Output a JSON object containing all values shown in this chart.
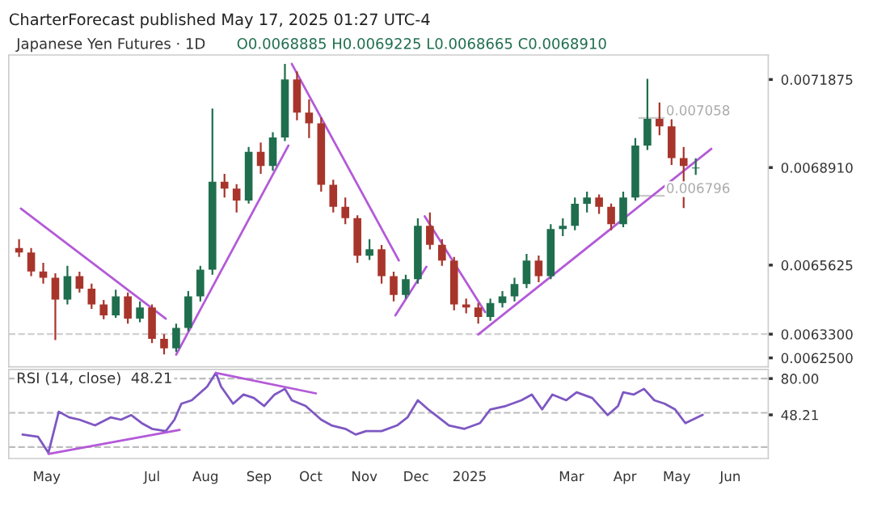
{
  "chart_data": [
    {
      "type": "candlestick",
      "title": "Japanese Yen Futures · 1D",
      "subtitle": "O0.0068885 H0.0069225 L0.0068665 C0.0068910",
      "annotations": [
        "CharterForecast published May 17, 2025 01:27 UTC-4"
      ],
      "x": [
        "2024-04-15",
        "2024-04-22",
        "2024-04-29",
        "2024-05-06",
        "2024-05-13",
        "2024-05-20",
        "2024-05-27",
        "2024-06-03",
        "2024-06-10",
        "2024-06-17",
        "2024-06-24",
        "2024-07-01",
        "2024-07-08",
        "2024-07-15",
        "2024-07-22",
        "2024-07-29",
        "2024-08-05",
        "2024-08-12",
        "2024-08-19",
        "2024-08-26",
        "2024-09-02",
        "2024-09-09",
        "2024-09-16",
        "2024-09-23",
        "2024-09-30",
        "2024-10-07",
        "2024-10-14",
        "2024-10-21",
        "2024-10-28",
        "2024-11-04",
        "2024-11-11",
        "2024-11-18",
        "2024-11-25",
        "2024-12-02",
        "2024-12-09",
        "2024-12-16",
        "2024-12-23",
        "2024-12-30",
        "2025-01-06",
        "2025-01-13",
        "2025-01-20",
        "2025-01-27",
        "2025-02-03",
        "2025-02-10",
        "2025-02-17",
        "2025-02-24",
        "2025-03-03",
        "2025-03-10",
        "2025-03-17",
        "2025-03-24",
        "2025-03-31",
        "2025-04-07",
        "2025-04-14",
        "2025-04-21",
        "2025-04-28",
        "2025-05-05",
        "2025-05-12"
      ],
      "ohlc": [
        [
          0.00662,
          0.00665,
          0.00659,
          0.006605
        ],
        [
          0.006605,
          0.00662,
          0.006525,
          0.006541
        ],
        [
          0.006541,
          0.00657,
          0.0065,
          0.00652
        ],
        [
          0.00652,
          0.006535,
          0.00631,
          0.006446
        ],
        [
          0.006446,
          0.00656,
          0.00643,
          0.006525
        ],
        [
          0.006525,
          0.00654,
          0.00647,
          0.006483
        ],
        [
          0.006483,
          0.0065,
          0.006415,
          0.00643
        ],
        [
          0.00643,
          0.006445,
          0.00638,
          0.006393
        ],
        [
          0.006393,
          0.00648,
          0.006385,
          0.006457
        ],
        [
          0.006457,
          0.00647,
          0.006365,
          0.006382
        ],
        [
          0.006382,
          0.00644,
          0.00637,
          0.00642
        ],
        [
          0.00642,
          0.00643,
          0.0063,
          0.006314
        ],
        [
          0.006314,
          0.00633,
          0.006262,
          0.006282
        ],
        [
          0.006282,
          0.006365,
          0.00627,
          0.006351
        ],
        [
          0.006351,
          0.006475,
          0.00634,
          0.006457
        ],
        [
          0.006457,
          0.00656,
          0.00644,
          0.006547
        ],
        [
          0.006547,
          0.00709,
          0.00653,
          0.006843
        ],
        [
          0.006843,
          0.00687,
          0.00679,
          0.00682
        ],
        [
          0.00682,
          0.006835,
          0.00674,
          0.00678
        ],
        [
          0.00678,
          0.00696,
          0.00677,
          0.006944
        ],
        [
          0.006944,
          0.006975,
          0.00687,
          0.006896
        ],
        [
          0.006896,
          0.00701,
          0.00688,
          0.006992
        ],
        [
          0.006992,
          0.00724,
          0.00698,
          0.007188
        ],
        [
          0.007188,
          0.007215,
          0.00705,
          0.007076
        ],
        [
          0.007076,
          0.00712,
          0.00699,
          0.00704
        ],
        [
          0.00704,
          0.00706,
          0.00681,
          0.006833
        ],
        [
          0.006833,
          0.00685,
          0.00674,
          0.006759
        ],
        [
          0.006759,
          0.00679,
          0.0067,
          0.006721
        ],
        [
          0.006721,
          0.00673,
          0.00657,
          0.006594
        ],
        [
          0.006594,
          0.00665,
          0.00658,
          0.006616
        ],
        [
          0.006616,
          0.00663,
          0.0065,
          0.006525
        ],
        [
          0.006525,
          0.00654,
          0.00644,
          0.006462
        ],
        [
          0.006462,
          0.00653,
          0.00645,
          0.006515
        ],
        [
          0.006515,
          0.00672,
          0.0065,
          0.006695
        ],
        [
          0.006695,
          0.00674,
          0.006615,
          0.006631
        ],
        [
          0.006631,
          0.00665,
          0.00656,
          0.006578
        ],
        [
          0.006578,
          0.00659,
          0.00641,
          0.00643
        ],
        [
          0.00643,
          0.00645,
          0.0064,
          0.00642
        ],
        [
          0.00642,
          0.006435,
          0.006365,
          0.006388
        ],
        [
          0.006388,
          0.00645,
          0.006375,
          0.006435
        ],
        [
          0.006435,
          0.006475,
          0.00642,
          0.006457
        ],
        [
          0.006457,
          0.00652,
          0.00644,
          0.006499
        ],
        [
          0.006499,
          0.0066,
          0.006485,
          0.006578
        ],
        [
          0.006578,
          0.006595,
          0.006505,
          0.006525
        ],
        [
          0.006525,
          0.0067,
          0.006515,
          0.006684
        ],
        [
          0.006684,
          0.00672,
          0.00666,
          0.006695
        ],
        [
          0.006695,
          0.00679,
          0.00668,
          0.006769
        ],
        [
          0.006769,
          0.00681,
          0.00674,
          0.00679
        ],
        [
          0.00679,
          0.0068,
          0.006735,
          0.006759
        ],
        [
          0.006759,
          0.00677,
          0.00668,
          0.0067
        ],
        [
          0.0067,
          0.00681,
          0.00669,
          0.00679
        ],
        [
          0.00679,
          0.00699,
          0.00678,
          0.006965
        ],
        [
          0.006965,
          0.00719,
          0.00695,
          0.007055
        ],
        [
          0.007055,
          0.00711,
          0.007,
          0.00703
        ],
        [
          0.00703,
          0.00706,
          0.0069,
          0.006923
        ],
        [
          0.006923,
          0.00696,
          0.006755,
          0.006896
        ],
        [
          0.0068885,
          0.0069225,
          0.0068665,
          0.006891
        ]
      ],
      "colors": [
        "#a8352b",
        "#a8352b",
        "#a8352b",
        "#a8352b",
        "#1f6e4e",
        "#a8352b",
        "#a8352b",
        "#a8352b",
        "#1f6e4e",
        "#a8352b",
        "#1f6e4e",
        "#a8352b",
        "#a8352b",
        "#1f6e4e",
        "#1f6e4e",
        "#1f6e4e",
        "#1f6e4e",
        "#a8352b",
        "#a8352b",
        "#1f6e4e",
        "#a8352b",
        "#1f6e4e",
        "#1f6e4e",
        "#a8352b",
        "#a8352b",
        "#a8352b",
        "#a8352b",
        "#a8352b",
        "#a8352b",
        "#1f6e4e",
        "#a8352b",
        "#a8352b",
        "#1f6e4e",
        "#1f6e4e",
        "#a8352b",
        "#a8352b",
        "#a8352b",
        "#a8352b",
        "#a8352b",
        "#1f6e4e",
        "#1f6e4e",
        "#1f6e4e",
        "#1f6e4e",
        "#a8352b",
        "#1f6e4e",
        "#1f6e4e",
        "#1f6e4e",
        "#1f6e4e",
        "#a8352b",
        "#a8352b",
        "#1f6e4e",
        "#1f6e4e",
        "#1f6e4e",
        "#a8352b",
        "#a8352b",
        "#a8352b",
        "#1f6e4e"
      ],
      "series": [
        {
          "type": "line",
          "color": "#b45ad8",
          "x": [
            "2024-04-16",
            "2024-07-09"
          ],
          "values": [
            0.006753,
            0.006382
          ]
        },
        {
          "type": "line",
          "color": "#b45ad8",
          "x": [
            "2024-07-15",
            "2024-09-18"
          ],
          "values": [
            0.006261,
            0.006965
          ]
        },
        {
          "type": "line",
          "color": "#b45ad8",
          "x": [
            "2024-09-20",
            "2024-11-21"
          ],
          "values": [
            0.00724,
            0.006578
          ]
        },
        {
          "type": "line",
          "color": "#b45ad8",
          "x": [
            "2024-11-19",
            "2024-12-07"
          ],
          "values": [
            0.006393,
            0.006557
          ]
        },
        {
          "type": "line",
          "color": "#b45ad8",
          "x": [
            "2024-12-06",
            "2025-01-10"
          ],
          "values": [
            0.006727,
            0.006404
          ]
        },
        {
          "type": "line",
          "color": "#b45ad8",
          "x": [
            "2025-01-06",
            "2025-05-21"
          ],
          "values": [
            0.006329,
            0.006954
          ]
        }
      ],
      "ref_lines": [
        {
          "axis": "y",
          "value": 0.007058,
          "label": "0.007058",
          "color": "#c8c8c8",
          "line_style": "solid"
        },
        {
          "axis": "y",
          "value": 0.006796,
          "label": "0.006796",
          "color": "#c8c8c8",
          "line_style": "solid"
        },
        {
          "axis": "y",
          "value": 0.00633,
          "color": "#d0d0d0",
          "line_style": "dashed"
        }
      ],
      "xlim": [
        "2024-04-09",
        "2025-06-23"
      ],
      "ylim": [
        0.00622,
        0.00727
      ],
      "yticks": [
        {
          "value": 0.00625,
          "label": "0.0062500"
        },
        {
          "value": 0.00633,
          "label": "0.0063300"
        },
        {
          "value": 0.0065625,
          "label": "0.0065625"
        },
        {
          "value": 0.006891,
          "label": "0.0068910"
        },
        {
          "value": 0.0071875,
          "label": "0.0071875"
        }
      ],
      "tick_labels": "y",
      "grid": false
    },
    {
      "type": "line",
      "title": "RSI (14, close)  48.21",
      "series": [
        {
          "color": "#7e57c2",
          "x": [
            "2024-04-17",
            "2024-04-26",
            "2024-05-02",
            "2024-05-08",
            "2024-05-14",
            "2024-05-20",
            "2024-05-29",
            "2024-06-07",
            "2024-06-13",
            "2024-06-19",
            "2024-06-25",
            "2024-07-01",
            "2024-07-09",
            "2024-07-14",
            "2024-07-18",
            "2024-07-24",
            "2024-08-02",
            "2024-08-07",
            "2024-08-10",
            "2024-08-17",
            "2024-08-23",
            "2024-08-29",
            "2024-09-04",
            "2024-09-10",
            "2024-09-16",
            "2024-09-20",
            "2024-09-28",
            "2024-10-04",
            "2024-10-07",
            "2024-10-13",
            "2024-10-21",
            "2024-10-27",
            "2024-11-02",
            "2024-11-11",
            "2024-11-20",
            "2024-11-26",
            "2024-12-02",
            "2024-12-08",
            "2024-12-14",
            "2024-12-20",
            "2024-12-29",
            "2025-01-07",
            "2025-01-13",
            "2025-01-22",
            "2025-01-31",
            "2025-02-06",
            "2025-02-12",
            "2025-02-18",
            "2025-02-26",
            "2025-03-04",
            "2025-03-13",
            "2025-03-22",
            "2025-03-28",
            "2025-03-31",
            "2025-04-06",
            "2025-04-12",
            "2025-04-18",
            "2025-04-24",
            "2025-04-30",
            "2025-05-06",
            "2025-05-16"
          ],
          "values": [
            31,
            29,
            15,
            51,
            46,
            44,
            39,
            46,
            44,
            48,
            41,
            36,
            34,
            44,
            58,
            61,
            73,
            85,
            73,
            58,
            66,
            63,
            56,
            66,
            71,
            61,
            56,
            48,
            44,
            39,
            36,
            31,
            34,
            34,
            39,
            46,
            61,
            53,
            46,
            39,
            36,
            41,
            53,
            56,
            61,
            66,
            53,
            66,
            61,
            68,
            63,
            48,
            56,
            68,
            66,
            71,
            61,
            58,
            53,
            41,
            48.21
          ]
        },
        {
          "type": "line",
          "color": "#b45ad8",
          "x": [
            "2024-05-02",
            "2024-07-17"
          ],
          "values": [
            14,
            35
          ]
        },
        {
          "type": "line",
          "color": "#b45ad8",
          "x": [
            "2024-08-07",
            "2024-10-04"
          ],
          "values": [
            85,
            67
          ]
        }
      ],
      "ref_lines": [
        {
          "axis": "y",
          "value": 80,
          "color": "#bdbdbd",
          "line_style": "dashed"
        },
        {
          "axis": "y",
          "value": 50,
          "color": "#bdbdbd",
          "line_style": "dashed"
        },
        {
          "axis": "y",
          "value": 20,
          "color": "#bdbdbd",
          "line_style": "dashed"
        }
      ],
      "xlim": [
        "2024-04-09",
        "2025-06-23"
      ],
      "xticks": [
        {
          "value": "2024-05-01",
          "label": "May"
        },
        {
          "value": "2024-07-01",
          "label": "Jul"
        },
        {
          "value": "2024-08-01",
          "label": "Aug"
        },
        {
          "value": "2024-09-01",
          "label": "Sep"
        },
        {
          "value": "2024-10-01",
          "label": "Oct"
        },
        {
          "value": "2024-11-01",
          "label": "Nov"
        },
        {
          "value": "2024-12-01",
          "label": "Dec"
        },
        {
          "value": "2025-01-01",
          "label": "2025"
        },
        {
          "value": "2025-03-01",
          "label": "Mar"
        },
        {
          "value": "2025-04-01",
          "label": "Apr"
        },
        {
          "value": "2025-05-01",
          "label": "May"
        },
        {
          "value": "2025-06-01",
          "label": "Jun"
        }
      ],
      "ylim": [
        10,
        88
      ],
      "yticks": [
        {
          "value": 80,
          "label": "80.00"
        },
        {
          "value": 48.21,
          "label": "48.21"
        }
      ],
      "grid": false
    }
  ]
}
